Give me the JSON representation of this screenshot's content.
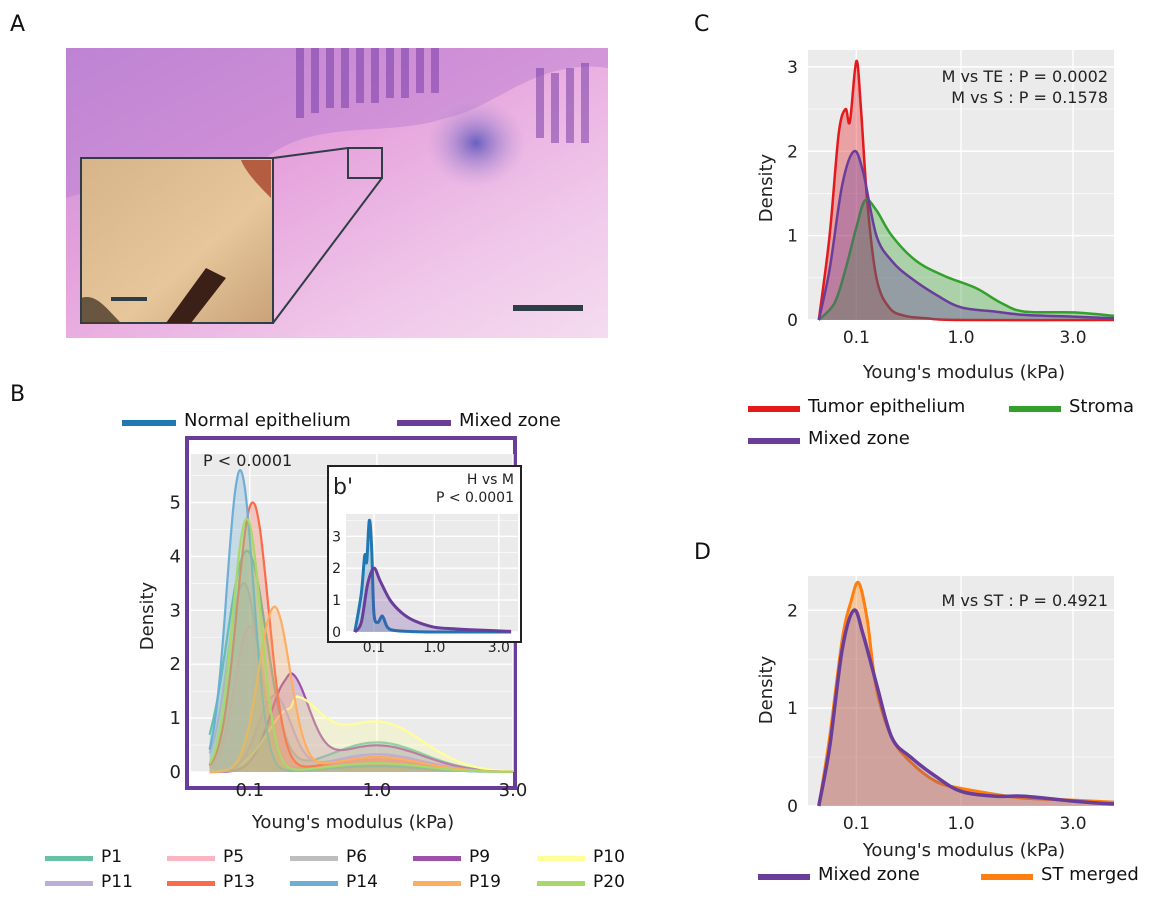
{
  "panels": {
    "a": "A",
    "b": "B",
    "c": "C",
    "d": "D"
  },
  "colors": {
    "normal_epithelium": "#1f77b4",
    "mixed_zone": "#6a3d9a",
    "tumor_epithelium": "#e31a1c",
    "stroma": "#33a02c",
    "st_merged": "#ff7f0e",
    "plot_background": "#ebebeb"
  },
  "chart_data": [
    {
      "id": "B",
      "type": "area",
      "legend": [
        "Normal epithelium",
        "Mixed zone"
      ],
      "legend_placement": "top",
      "annotation_pvalue": "P < 0.0001",
      "xlabel": "Young's modulus (kPa)",
      "ylabel": "Density",
      "x_scale": "sqrt",
      "xlim": [
        0.01,
        3.0
      ],
      "ylim": [
        0,
        6
      ],
      "x_ticks": [
        "0.1",
        "1.0",
        "3.0"
      ],
      "y_ticks": [
        "0",
        "1",
        "2",
        "3",
        "4",
        "5"
      ],
      "grid": true,
      "series": [
        {
          "name": "P1",
          "color": "#66c2a5",
          "peak_x": 0.09,
          "peak_y": 4.1,
          "tail": 1.0
        },
        {
          "name": "P5",
          "color": "#fbb4c4",
          "peak_x": 0.1,
          "peak_y": 2.7,
          "tail": 0.4
        },
        {
          "name": "P6",
          "color": "#bdbdbd",
          "peak_x": 0.08,
          "peak_y": 3.5,
          "tail": 0.5
        },
        {
          "name": "P9",
          "color": "#9e4fa8",
          "peak_x": 0.28,
          "peak_y": 1.75,
          "tail": 0.9
        },
        {
          "name": "P10",
          "color": "#ffff99",
          "peak_x": 0.3,
          "peak_y": 1.2,
          "tail": 1.7
        },
        {
          "name": "P11",
          "color": "#bcaed6",
          "peak_x": 0.2,
          "peak_y": 1.4,
          "tail": 0.6
        },
        {
          "name": "P13",
          "color": "#fb6a4a",
          "peak_x": 0.11,
          "peak_y": 5.0,
          "tail": 0.5
        },
        {
          "name": "P14",
          "color": "#6baed6",
          "peak_x": 0.07,
          "peak_y": 5.6,
          "tail": 0.2
        },
        {
          "name": "P19",
          "color": "#fdae61",
          "peak_x": 0.2,
          "peak_y": 3.05,
          "tail": 0.5
        },
        {
          "name": "P20",
          "color": "#a6d96a",
          "peak_x": 0.09,
          "peak_y": 4.7,
          "tail": 0.3
        }
      ],
      "inset": {
        "label": "b'",
        "annotation_line1": "H vs M",
        "annotation_line2": "P < 0.0001",
        "x_ticks": [
          "0.1",
          "1.0",
          "3.0"
        ],
        "y_ticks": [
          "0",
          "1",
          "2",
          "3"
        ],
        "ylim": [
          0,
          4
        ],
        "series": [
          {
            "name": "Normal epithelium",
            "x": [
              0.01,
              0.03,
              0.045,
              0.055,
              0.07,
              0.085,
              0.1,
              0.13,
              0.17,
              0.22,
              0.3,
              0.5,
              1.0,
              3.5
            ],
            "y": [
              0,
              1.2,
              2.4,
              2.2,
              3.5,
              2.6,
              0.6,
              0.3,
              0.5,
              0.15,
              0.05,
              0.02,
              0,
              0
            ]
          },
          {
            "name": "Mixed zone",
            "x": [
              0.01,
              0.03,
              0.06,
              0.1,
              0.15,
              0.25,
              0.4,
              0.6,
              1.0,
              1.5,
              2.0,
              3.5
            ],
            "y": [
              0,
              0.3,
              1.5,
              2.0,
              1.6,
              1.0,
              0.6,
              0.35,
              0.15,
              0.1,
              0.07,
              0.02
            ]
          }
        ]
      }
    },
    {
      "id": "C",
      "type": "area",
      "legend": [
        "Tumor epithelium",
        "Stroma",
        "Mixed zone"
      ],
      "legend_placement": "bottom",
      "annotation_line1": "M vs TE : P = 0.0002",
      "annotation_line2": "M vs S : P = 0.1578",
      "xlabel": "Young's modulus (kPa)",
      "ylabel": "Density",
      "x_scale": "sqrt",
      "xlim": [
        0.0,
        4.0
      ],
      "ylim": [
        0,
        3.2
      ],
      "x_ticks": [
        "0.1",
        "1.0",
        "3.0"
      ],
      "y_ticks": [
        "0",
        "1",
        "2",
        "3"
      ],
      "grid": true,
      "series": [
        {
          "name": "Tumor epithelium",
          "x": [
            0.005,
            0.02,
            0.04,
            0.06,
            0.075,
            0.1,
            0.12,
            0.15,
            0.2,
            0.28,
            0.4,
            0.6,
            1.0,
            4.0
          ],
          "y": [
            0,
            1.0,
            2.2,
            2.5,
            2.35,
            3.07,
            2.5,
            1.4,
            0.5,
            0.15,
            0.05,
            0.02,
            0,
            0
          ]
        },
        {
          "name": "Stroma",
          "x": [
            0.005,
            0.03,
            0.06,
            0.1,
            0.14,
            0.2,
            0.3,
            0.5,
            0.8,
            1.2,
            1.6,
            2.0,
            3.0,
            4.0
          ],
          "y": [
            0,
            0.2,
            0.6,
            1.1,
            1.42,
            1.3,
            1.0,
            0.7,
            0.52,
            0.38,
            0.2,
            0.1,
            0.09,
            0.05
          ]
        },
        {
          "name": "Mixed zone",
          "x": [
            0.005,
            0.02,
            0.05,
            0.09,
            0.13,
            0.2,
            0.3,
            0.45,
            0.7,
            1.0,
            1.5,
            2.0,
            3.0,
            4.0
          ],
          "y": [
            0,
            0.6,
            1.6,
            2.0,
            1.75,
            1.0,
            0.7,
            0.5,
            0.3,
            0.15,
            0.1,
            0.06,
            0.04,
            0.02
          ]
        }
      ]
    },
    {
      "id": "D",
      "type": "area",
      "legend": [
        "Mixed zone",
        "ST merged"
      ],
      "legend_placement": "bottom",
      "annotation_line1": "M vs ST : P = 0.4921",
      "xlabel": "Young's modulus (kPa)",
      "ylabel": "Density",
      "x_scale": "sqrt",
      "xlim": [
        0.0,
        4.0
      ],
      "ylim": [
        0,
        2.35
      ],
      "x_ticks": [
        "0.1",
        "1.0",
        "3.0"
      ],
      "y_ticks": [
        "0",
        "1",
        "2"
      ],
      "grid": true,
      "series": [
        {
          "name": "Mixed zone",
          "x": [
            0.005,
            0.02,
            0.05,
            0.09,
            0.13,
            0.2,
            0.3,
            0.45,
            0.7,
            1.0,
            1.5,
            2.0,
            3.0,
            4.0
          ],
          "y": [
            0,
            0.6,
            1.6,
            2.0,
            1.75,
            1.25,
            0.7,
            0.5,
            0.3,
            0.15,
            0.1,
            0.1,
            0.05,
            0.02
          ]
        },
        {
          "name": "ST merged",
          "x": [
            0.005,
            0.02,
            0.05,
            0.08,
            0.11,
            0.15,
            0.2,
            0.3,
            0.45,
            0.7,
            1.0,
            1.5,
            2.0,
            3.0,
            4.0
          ],
          "y": [
            0,
            0.7,
            1.7,
            2.1,
            2.28,
            1.9,
            1.2,
            0.7,
            0.45,
            0.25,
            0.18,
            0.12,
            0.08,
            0.06,
            0.04
          ]
        }
      ]
    }
  ]
}
